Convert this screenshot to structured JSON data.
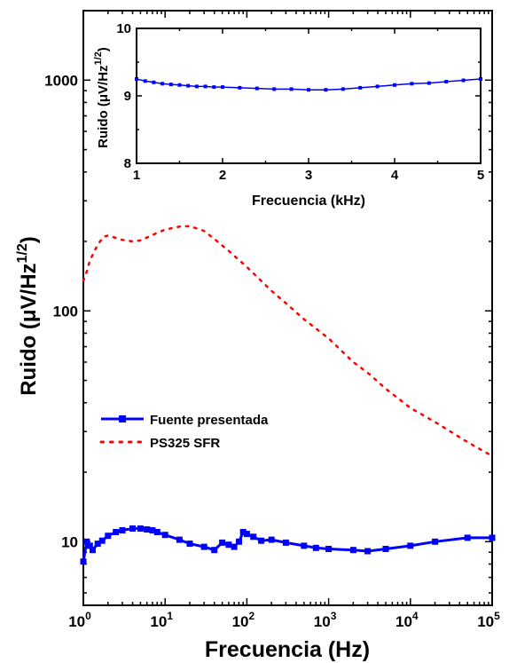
{
  "chart_data": [
    {
      "type": "line",
      "xlabel": "Frecuencia (Hz)",
      "ylabel_main": "Ruido (",
      "ylabel_unit": "μV/Hz",
      "ylabel_exp": "1/2",
      "ylabel_close": ")",
      "x_scale": "log",
      "y_scale": "log",
      "xlim": [
        1,
        100000
      ],
      "ylim": [
        5.3,
        2000
      ],
      "x_ticks": [
        {
          "value": 1,
          "base": "10",
          "exp": "0"
        },
        {
          "value": 10,
          "base": "10",
          "exp": "1"
        },
        {
          "value": 100,
          "base": "10",
          "exp": "2"
        },
        {
          "value": 1000,
          "base": "10",
          "exp": "3"
        },
        {
          "value": 10000,
          "base": "10",
          "exp": "4"
        },
        {
          "value": 100000,
          "base": "10",
          "exp": "5"
        }
      ],
      "y_ticks": [
        {
          "value": 10,
          "label": "10"
        },
        {
          "value": 100,
          "label": "100"
        },
        {
          "value": 1000,
          "label": "1000"
        }
      ],
      "legend_position": "center-left",
      "series": [
        {
          "name": "Fuente presentada",
          "color": "#0000ff",
          "style": "line-square-markers",
          "x": [
            1,
            1.1,
            1.2,
            1.3,
            1.5,
            1.7,
            2,
            2.5,
            3,
            4,
            5,
            6,
            7,
            8,
            10,
            15,
            20,
            30,
            40,
            50,
            60,
            70,
            80,
            90,
            100,
            120,
            150,
            200,
            300,
            500,
            700,
            1000,
            2000,
            3000,
            5000,
            10000,
            20000,
            50000,
            100000
          ],
          "y": [
            8.2,
            10.0,
            9.6,
            9.2,
            9.8,
            10.1,
            10.6,
            11.0,
            11.2,
            11.4,
            11.4,
            11.3,
            11.2,
            11.0,
            10.7,
            10.2,
            9.8,
            9.5,
            9.2,
            9.9,
            9.7,
            9.5,
            10.0,
            11.0,
            10.8,
            10.5,
            10.1,
            10.2,
            9.9,
            9.6,
            9.4,
            9.3,
            9.2,
            9.1,
            9.3,
            9.6,
            10.0,
            10.4,
            10.4
          ]
        },
        {
          "name": "PS325 SFR",
          "color": "#ff0000",
          "style": "dotted",
          "x": [
            1,
            1.1,
            1.2,
            1.4,
            1.6,
            1.8,
            2,
            3,
            4,
            5,
            6,
            8,
            10,
            15,
            20,
            30,
            40,
            60,
            100,
            200,
            300,
            500,
            1000,
            2000,
            3000,
            5000,
            10000,
            20000,
            50000,
            100000
          ],
          "y": [
            135,
            148,
            165,
            185,
            200,
            210,
            212,
            203,
            200,
            202,
            208,
            218,
            225,
            232,
            233,
            222,
            205,
            182,
            155,
            122,
            108,
            92,
            76,
            60,
            54,
            46,
            38,
            33,
            27,
            23.5
          ]
        }
      ]
    },
    {
      "type": "line",
      "xlabel": "Frecuencia (kHz)",
      "ylabel_main": "Ruido (",
      "ylabel_unit": "μV/Hz",
      "ylabel_exp": "1/2",
      "ylabel_close": ")",
      "xlim": [
        1,
        5
      ],
      "ylim": [
        8,
        10
      ],
      "x_ticks": [
        {
          "value": 1,
          "label": "1"
        },
        {
          "value": 2,
          "label": "2"
        },
        {
          "value": 3,
          "label": "3"
        },
        {
          "value": 4,
          "label": "4"
        },
        {
          "value": 5,
          "label": "5"
        }
      ],
      "y_ticks": [
        {
          "value": 8,
          "label": "8"
        },
        {
          "value": 9,
          "label": "9"
        },
        {
          "value": 10,
          "label": "10"
        }
      ],
      "series": [
        {
          "name": "Fuente presentada",
          "color": "#0000ff",
          "x": [
            1,
            1.1,
            1.2,
            1.3,
            1.4,
            1.5,
            1.6,
            1.7,
            1.8,
            1.9,
            2,
            2.2,
            2.4,
            2.6,
            2.8,
            3,
            3.2,
            3.4,
            3.6,
            3.8,
            4,
            4.2,
            4.4,
            4.6,
            4.8,
            5
          ],
          "y": [
            9.25,
            9.22,
            9.2,
            9.18,
            9.17,
            9.16,
            9.15,
            9.14,
            9.14,
            9.13,
            9.13,
            9.12,
            9.11,
            9.1,
            9.1,
            9.09,
            9.09,
            9.1,
            9.12,
            9.14,
            9.16,
            9.18,
            9.19,
            9.21,
            9.23,
            9.25
          ]
        }
      ]
    }
  ],
  "legend": [
    {
      "label": "Fuente presentada"
    },
    {
      "label": "PS325 SFR"
    }
  ]
}
